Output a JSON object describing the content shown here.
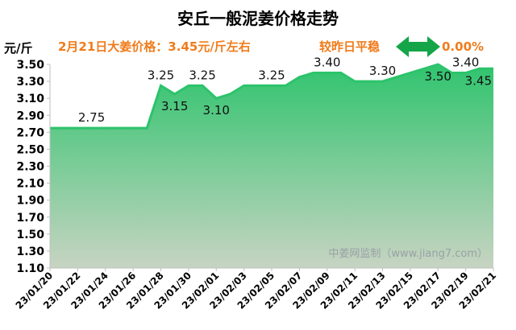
{
  "chart_data": {
    "type": "area",
    "title": "安丘一般泥姜价格走势",
    "ylabel": "元/斤",
    "ylim": [
      1.1,
      3.5
    ],
    "y_ticks": [
      "1.10",
      "1.30",
      "1.50",
      "1.70",
      "1.90",
      "2.10",
      "2.30",
      "2.50",
      "2.70",
      "2.90",
      "3.10",
      "3.30",
      "3.50"
    ],
    "x_ticks": [
      "23/01/20",
      "23/01/22",
      "23/01/24",
      "23/01/26",
      "23/01/28",
      "23/01/30",
      "23/02/01",
      "23/02/03",
      "23/02/05",
      "23/02/07",
      "23/02/09",
      "23/02/11",
      "23/02/13",
      "23/02/15",
      "23/02/17",
      "23/02/19",
      "23/02/21"
    ],
    "x": [
      "23/01/20",
      "23/01/21",
      "23/01/22",
      "23/01/23",
      "23/01/24",
      "23/01/25",
      "23/01/26",
      "23/01/27",
      "23/01/28",
      "23/01/29",
      "23/01/30",
      "23/01/31",
      "23/02/01",
      "23/02/02",
      "23/02/03",
      "23/02/04",
      "23/02/05",
      "23/02/06",
      "23/02/07",
      "23/02/08",
      "23/02/09",
      "23/02/10",
      "23/02/11",
      "23/02/12",
      "23/02/13",
      "23/02/14",
      "23/02/15",
      "23/02/16",
      "23/02/17",
      "23/02/18",
      "23/02/19",
      "23/02/20",
      "23/02/21"
    ],
    "values": [
      2.75,
      2.75,
      2.75,
      2.75,
      2.75,
      2.75,
      2.75,
      2.75,
      3.25,
      3.15,
      3.25,
      3.25,
      3.1,
      3.15,
      3.25,
      3.25,
      3.25,
      3.25,
      3.35,
      3.4,
      3.4,
      3.4,
      3.3,
      3.3,
      3.3,
      3.35,
      3.4,
      3.45,
      3.5,
      3.4,
      3.4,
      3.45,
      3.45
    ],
    "data_labels": [
      {
        "i": 3,
        "text": "2.75"
      },
      {
        "i": 8,
        "text": "3.25"
      },
      {
        "i": 9,
        "text": "3.15"
      },
      {
        "i": 11,
        "text": "3.25"
      },
      {
        "i": 12,
        "text": "3.10"
      },
      {
        "i": 16,
        "text": "3.25"
      },
      {
        "i": 20,
        "text": "3.40"
      },
      {
        "i": 24,
        "text": "3.30"
      },
      {
        "i": 28,
        "text": "3.50"
      },
      {
        "i": 30,
        "text": "3.40"
      },
      {
        "i": 32,
        "text": "3.45"
      }
    ],
    "grid": false,
    "colors": {
      "line": "#2cc36b",
      "fill_top": "#30c46e",
      "fill_bottom": "#c7d4c2",
      "arrow": "#14a548",
      "accent": "#f07c1c"
    }
  },
  "header": {
    "price_note": "2月21日大姜价格：3.45元/斤左右",
    "trend_label": "较昨日平稳",
    "change": "0.00%"
  },
  "watermark": "中姜网监制（www.jiang7.com）"
}
